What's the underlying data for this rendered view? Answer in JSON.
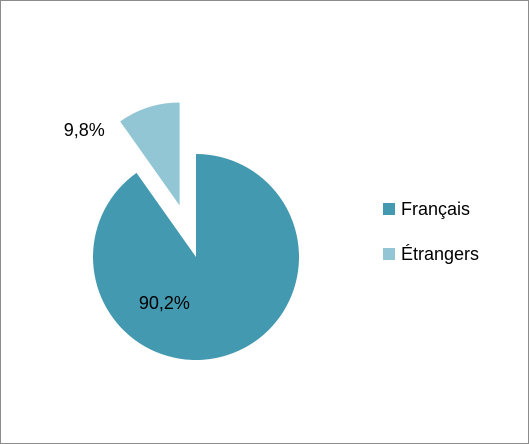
{
  "chart_data": {
    "type": "pie",
    "categories": [
      "Français",
      "Étrangers"
    ],
    "values": [
      90.2,
      9.8
    ],
    "value_labels": [
      "90,2%",
      "9,8%"
    ],
    "colors": [
      "#4399b0",
      "#93c6d5"
    ],
    "legend": "right"
  }
}
